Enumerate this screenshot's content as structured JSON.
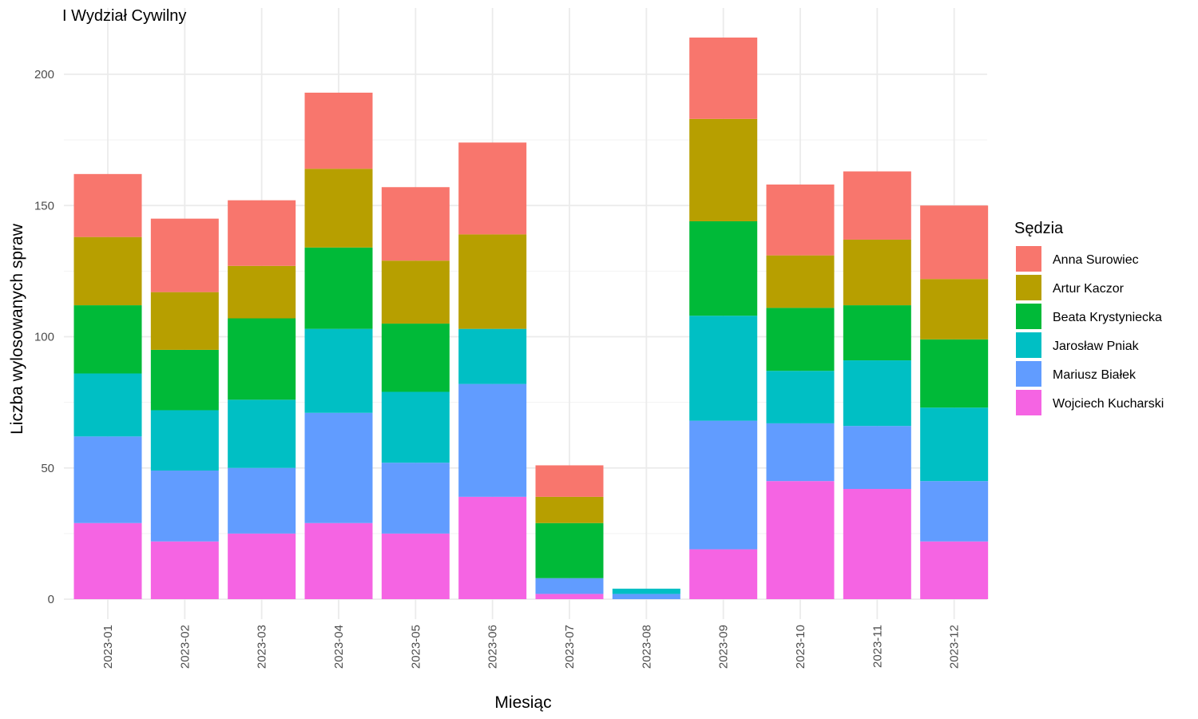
{
  "chart_data": {
    "type": "bar",
    "stacked": true,
    "title": "I Wydział Cywilny",
    "xlabel": "Miesiąc",
    "ylabel": "Liczba wylosowanych spraw",
    "legend_title": "Sędzia",
    "legend_position": "right",
    "grid": true,
    "ylim": [
      0,
      220
    ],
    "yticks": [
      0,
      50,
      100,
      150,
      200
    ],
    "categories": [
      "2023-01",
      "2023-02",
      "2023-03",
      "2023-04",
      "2023-05",
      "2023-06",
      "2023-07",
      "2023-08",
      "2023-09",
      "2023-10",
      "2023-11",
      "2023-12"
    ],
    "series": [
      {
        "name": "Wojciech Kucharski",
        "color": "#F564E3",
        "values": [
          29,
          22,
          25,
          29,
          25,
          39,
          2,
          0,
          19,
          45,
          42,
          22
        ]
      },
      {
        "name": "Mariusz Białek",
        "color": "#619CFF",
        "values": [
          33,
          27,
          25,
          42,
          27,
          43,
          6,
          2,
          49,
          22,
          24,
          23
        ]
      },
      {
        "name": "Jarosław Pniak",
        "color": "#00BFC4",
        "values": [
          24,
          23,
          26,
          32,
          27,
          21,
          0,
          2,
          40,
          20,
          25,
          28
        ]
      },
      {
        "name": "Beata Krystyniecka",
        "color": "#00BA38",
        "values": [
          26,
          23,
          31,
          31,
          26,
          0,
          21,
          0,
          36,
          24,
          21,
          26
        ]
      },
      {
        "name": "Artur Kaczor",
        "color": "#B79F00",
        "values": [
          26,
          22,
          20,
          30,
          24,
          36,
          10,
          0,
          39,
          20,
          25,
          23
        ]
      },
      {
        "name": "Anna Surowiec",
        "color": "#F8766D",
        "values": [
          24,
          28,
          25,
          29,
          28,
          35,
          12,
          0,
          31,
          27,
          26,
          28
        ]
      }
    ],
    "legend_order": [
      "Anna Surowiec",
      "Artur Kaczor",
      "Beata Krystyniecka",
      "Jarosław Pniak",
      "Mariusz Białek",
      "Wojciech Kucharski"
    ]
  }
}
